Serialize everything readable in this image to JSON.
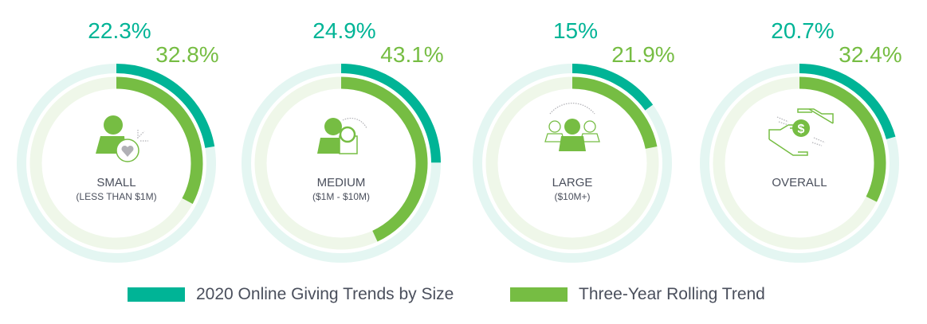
{
  "colors": {
    "primary": "#00b496",
    "secondary": "#76bd43",
    "primary_track": "#e4f6f2",
    "secondary_track": "#eff7e9",
    "label": "#4a4f5c",
    "icon_gray": "#b0b0b5"
  },
  "chart_data": {
    "type": "radial-bar",
    "title": "",
    "legend_position": "bottom",
    "series_names": [
      "2020 Online Giving Trends by Size",
      "Three-Year Rolling Trend"
    ],
    "categories": [
      {
        "label": "SMALL",
        "sublabel": "(LESS THAN $1M)",
        "icon": "person-heart-icon",
        "values": [
          22.3,
          32.8
        ],
        "value_labels": [
          "22.3%",
          "32.8%"
        ]
      },
      {
        "label": "MEDIUM",
        "sublabel": "($1M - $10M)",
        "icon": "person-magnifier-icon",
        "values": [
          24.9,
          43.1
        ],
        "value_labels": [
          "24.9%",
          "43.1%"
        ]
      },
      {
        "label": "LARGE",
        "sublabel": "($10M+)",
        "icon": "group-icon",
        "values": [
          15,
          21.9
        ],
        "value_labels": [
          "15%",
          "21.9%"
        ]
      },
      {
        "label": "OVERALL",
        "sublabel": "",
        "icon": "hands-dollar-icon",
        "values": [
          20.7,
          32.4
        ],
        "value_labels": [
          "20.7%",
          "32.4%"
        ]
      }
    ],
    "ylim": [
      0,
      100
    ]
  },
  "legend": {
    "items": [
      {
        "label": "2020 Online Giving Trends by Size"
      },
      {
        "label": "Three-Year Rolling Trend"
      }
    ]
  }
}
